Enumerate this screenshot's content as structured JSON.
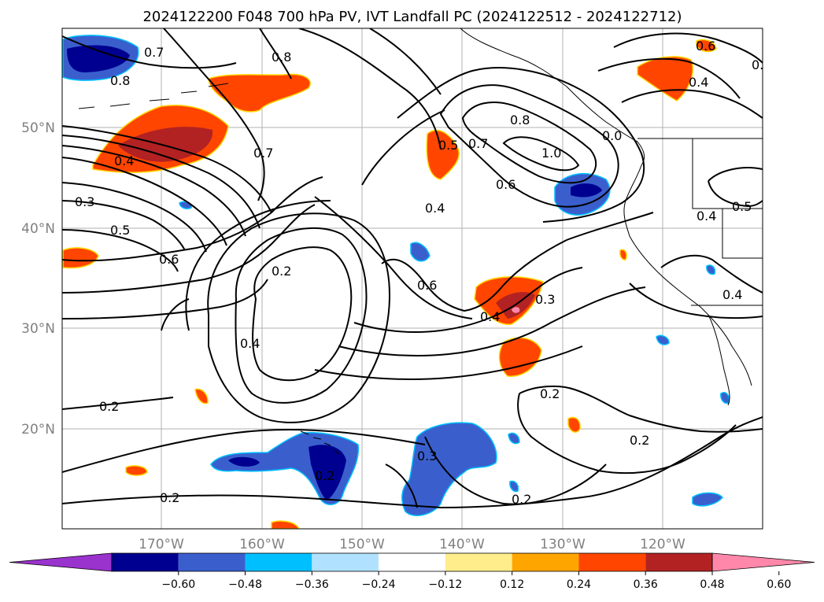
{
  "title": "2024122200 F048 700 hPa PV, IVT Landfall PC (2024122512 - 2024122712)",
  "lat_labels": [
    "50°N",
    "40°N",
    "30°N",
    "20°N"
  ],
  "lon_labels": [
    "170°W",
    "160°W",
    "150°W",
    "140°W",
    "130°W",
    "120°W"
  ],
  "colorbar": {
    "colors": [
      "#9a32cd",
      "#000090",
      "#3a5fcd",
      "#00bfff",
      "#b0e2ff",
      "#ffffff",
      "#ffec8b",
      "#ffa500",
      "#ff4500",
      "#b22222",
      "#ff88aa"
    ],
    "tick_labels": [
      "−0.60",
      "−0.48",
      "−0.36",
      "−0.24",
      "−0.12",
      "0.12",
      "0.24",
      "0.36",
      "0.48",
      "0.60"
    ]
  },
  "contour_labels": [
    "0.7",
    "0.8",
    "0.8",
    "0.4",
    "0.3",
    "0.5",
    "0.6",
    "0.7",
    "0.2",
    "0.4",
    "0.2",
    "0.2",
    "0.3",
    "0.2",
    "0.5",
    "0.7",
    "0.8",
    "1.0",
    "0.6",
    "0.4",
    "0.6",
    "0.4",
    "0.3",
    "0.2",
    "0.2",
    "0.2",
    "0.6",
    "0.4",
    "0.4",
    "0.5",
    "0.4",
    "0.0",
    "0.0"
  ]
}
